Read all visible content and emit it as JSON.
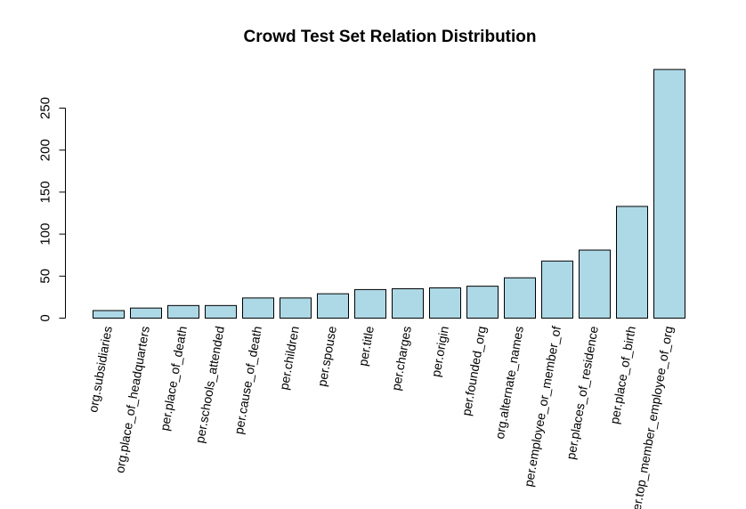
{
  "chart_data": {
    "type": "bar",
    "title": "Crowd Test Set Relation Distribution",
    "xlabel": "",
    "ylabel": "",
    "categories": [
      "org.subsidiaries",
      "org.place_of_headquarters",
      "per.place_of_death",
      "per.schools_attended",
      "per.cause_of_death",
      "per.children",
      "per.spouse",
      "per.title",
      "per.charges",
      "per.origin",
      "per.founded_org",
      "org.alternate_names",
      "per.employee_or_member_of",
      "per.places_of_residence",
      "per.place_of_birth",
      "per.top_member_employee_of_org"
    ],
    "values": [
      9,
      12,
      15,
      15,
      24,
      24,
      29,
      34,
      35,
      36,
      38,
      48,
      68,
      81,
      133,
      296
    ],
    "yticks": [
      0,
      50,
      100,
      150,
      200,
      250
    ],
    "ylim": [
      0,
      296
    ],
    "bar_color": "#add8e6",
    "grid": false,
    "legend": "none"
  }
}
